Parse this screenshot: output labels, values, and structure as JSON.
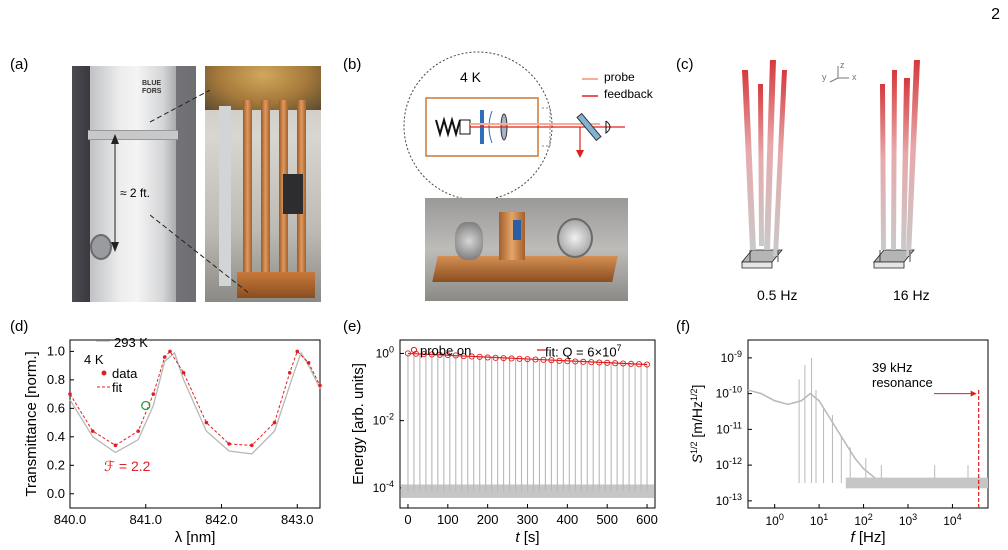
{
  "page_number": "2",
  "panels": {
    "a": {
      "label": "(a)",
      "brand": "BLUE FORS",
      "dimension": "≈ 2 ft."
    },
    "b": {
      "label": "(b)",
      "temperature": "4 K",
      "legend": [
        {
          "name": "probe",
          "color": "#f4b08f"
        },
        {
          "name": "feedback",
          "color": "#e02020"
        }
      ]
    },
    "c": {
      "label": "(c)",
      "axes": {
        "x": "x",
        "y": "y",
        "z": "z"
      },
      "modes": [
        "0.5 Hz",
        "16 Hz"
      ]
    },
    "d": {
      "label": "(d)",
      "legend": [
        "293 K",
        "4 K",
        "data",
        "fit"
      ],
      "finesse_label": "ℱ = 2.2"
    },
    "e": {
      "label": "(e)",
      "legend_probe": "probe on",
      "legend_fit": "fit: Q = 6×10",
      "legend_fit_exp": "7"
    },
    "f": {
      "label": "(f)",
      "annotation": [
        "39 kHz",
        "resonance"
      ]
    }
  },
  "colors": {
    "red": "#e02020",
    "gray": "#b8b8b8",
    "copper": "#c8793a"
  },
  "chart_data": [
    {
      "type": "line",
      "title": "",
      "xlabel": "λ [nm]",
      "ylabel": "Transmittance [norm.]",
      "xlim": [
        840.0,
        843.3
      ],
      "ylim": [
        -0.1,
        1.08
      ],
      "xticks": [
        "840.0",
        "841.0",
        "842.0",
        "843.0"
      ],
      "yticks": [
        "0.0",
        "0.2",
        "0.4",
        "0.6",
        "0.8",
        "1.0"
      ],
      "series": [
        {
          "name": "293 K",
          "color": "#b8b8b8",
          "x": [
            840.0,
            840.3,
            840.6,
            840.9,
            841.1,
            841.25,
            841.38,
            841.5,
            841.8,
            842.1,
            842.4,
            842.7,
            842.95,
            843.05,
            843.15,
            843.3
          ],
          "y": [
            0.66,
            0.4,
            0.29,
            0.38,
            0.62,
            0.93,
            0.99,
            0.8,
            0.44,
            0.3,
            0.28,
            0.44,
            0.84,
            0.99,
            0.9,
            0.74
          ]
        },
        {
          "name": "data",
          "color": "#e02020",
          "x": [
            840.0,
            840.3,
            840.6,
            840.9,
            841.1,
            841.25,
            841.32,
            841.5,
            841.8,
            842.1,
            842.4,
            842.7,
            842.9,
            843.0,
            843.15,
            843.3
          ],
          "y": [
            0.7,
            0.44,
            0.34,
            0.44,
            0.7,
            0.96,
            1.0,
            0.85,
            0.5,
            0.35,
            0.34,
            0.5,
            0.85,
            1.0,
            0.92,
            0.76
          ]
        }
      ]
    },
    {
      "type": "scatter",
      "title": "",
      "xlabel": "t [s]",
      "ylabel": "Energy [arb. units]",
      "xlim": [
        -20,
        620
      ],
      "log_y": true,
      "ylim_log10": [
        -4.6,
        0.4
      ],
      "xticks": [
        0,
        100,
        200,
        300,
        400,
        500,
        600
      ],
      "yticks": [
        "10^0",
        "10^-2",
        "10^-4"
      ],
      "series": [
        {
          "name": "probe on",
          "color": "#e02020",
          "x": [
            0,
            20,
            40,
            60,
            80,
            100,
            120,
            140,
            160,
            180,
            200,
            220,
            240,
            260,
            280,
            300,
            320,
            340,
            360,
            380,
            400,
            420,
            440,
            460,
            480,
            500,
            520,
            540,
            560,
            580,
            600
          ],
          "y_log10": [
            0,
            -0.01,
            -0.02,
            -0.03,
            -0.04,
            -0.05,
            -0.06,
            -0.08,
            -0.09,
            -0.1,
            -0.12,
            -0.13,
            -0.14,
            -0.15,
            -0.16,
            -0.17,
            -0.18,
            -0.19,
            -0.2,
            -0.22,
            -0.23,
            -0.24,
            -0.25,
            -0.26,
            -0.27,
            -0.28,
            -0.29,
            -0.3,
            -0.31,
            -0.32,
            -0.33
          ]
        }
      ]
    },
    {
      "type": "line",
      "title": "",
      "xlabel": "f [Hz]",
      "ylabel": "S_x^{1/2} [m/Hz^{1/2}]",
      "log_x": true,
      "log_y": true,
      "xlim_log10": [
        -0.6,
        4.8
      ],
      "ylim_log10": [
        -13.2,
        -8.5
      ],
      "xticks": [
        "10^0",
        "10^1",
        "10^2",
        "10^3",
        "10^4"
      ],
      "yticks": [
        "10^-9",
        "10^-10",
        "10^-11",
        "10^-12",
        "10^-13"
      ],
      "series": [
        {
          "name": "",
          "color": "#b8b8b8",
          "x_log10": [
            -0.6,
            -0.3,
            0,
            0.3,
            0.6,
            0.8,
            1.0,
            1.3,
            1.6,
            1.8,
            2.0,
            2.3,
            2.6,
            3.0,
            3.5,
            4.0,
            4.5,
            4.8
          ],
          "y_log10": [
            -9.9,
            -10.0,
            -10.2,
            -10.3,
            -10.2,
            -10.0,
            -10.2,
            -10.8,
            -11.4,
            -11.8,
            -12.1,
            -12.4,
            -12.5,
            -12.5,
            -12.5,
            -12.5,
            -12.5,
            -12.5
          ]
        },
        {
          "name": "39 kHz resonance",
          "color": "#e02020",
          "x_log10": [
            4.59
          ],
          "y_log10": [
            -10.0
          ]
        }
      ]
    }
  ]
}
